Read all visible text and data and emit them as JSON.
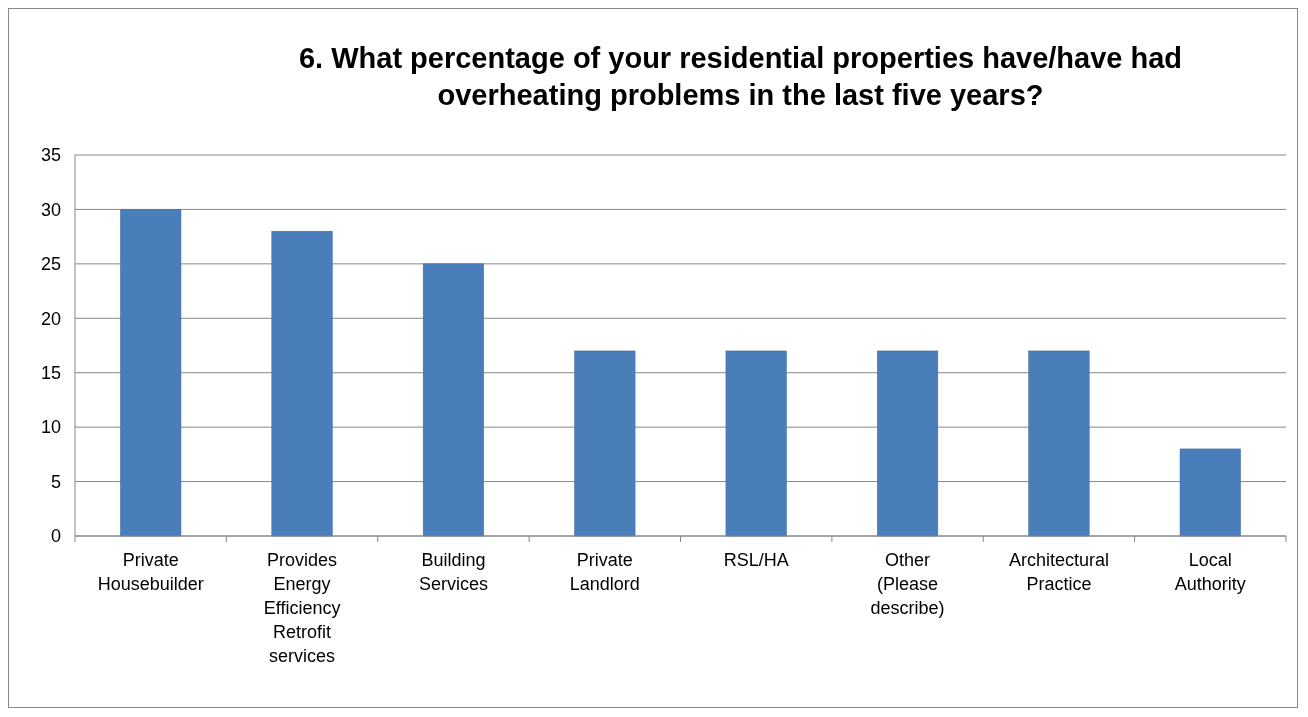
{
  "chart_data": {
    "type": "bar",
    "title": "6. What percentage of your residential properties have/have had overheating problems in the last five years?",
    "categories": [
      "Private Housebuilder",
      "Provides Energy Efficiency Retrofit services",
      "Building Services",
      "Private Landlord",
      "RSL/HA",
      "Other (Please describe)",
      "Architectural Practice",
      "Local Authority"
    ],
    "values": [
      30,
      28,
      25,
      17,
      17,
      17,
      17,
      8
    ],
    "color": "#4a7ebb",
    "ylim": [
      0,
      35
    ],
    "yticks": [
      0,
      5,
      10,
      15,
      20,
      25,
      30,
      35
    ],
    "grid": "y"
  }
}
